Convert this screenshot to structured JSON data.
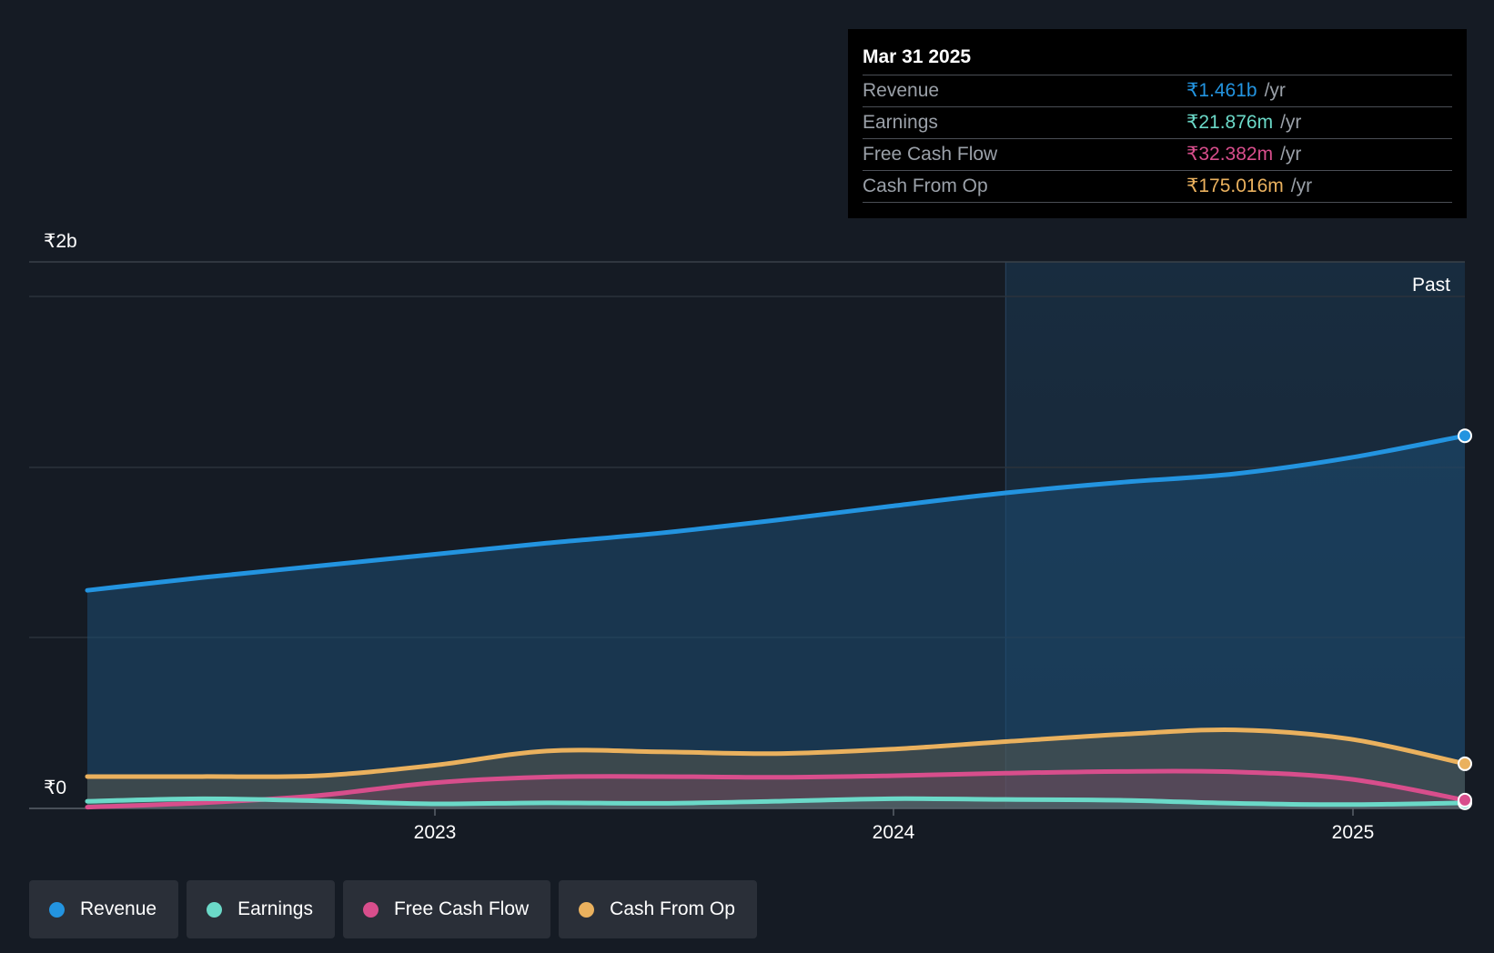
{
  "chart_data": {
    "type": "area",
    "y_unit_prefix": "₹",
    "ylim": [
      0,
      2000
    ],
    "y_unit": "m",
    "y_ticks": [
      {
        "value": 2000,
        "label": "₹2b"
      },
      {
        "value": 0,
        "label": "₹0"
      }
    ],
    "x_ticks": [
      {
        "value": 2023.0,
        "label": "2023"
      },
      {
        "value": 2024.0,
        "label": "2024"
      },
      {
        "value": 2025.0,
        "label": "2025"
      }
    ],
    "xlim": [
      2022.12,
      2025.25
    ],
    "past_start": 2024.25,
    "past_label": "Past",
    "series": [
      {
        "name": "Revenue",
        "color": "#2394e0",
        "points": [
          [
            2022.25,
            855
          ],
          [
            2022.5,
            905
          ],
          [
            2022.75,
            950
          ],
          [
            2023.0,
            995
          ],
          [
            2023.25,
            1040
          ],
          [
            2023.5,
            1080
          ],
          [
            2023.75,
            1130
          ],
          [
            2024.0,
            1185
          ],
          [
            2024.25,
            1237
          ],
          [
            2024.5,
            1278
          ],
          [
            2024.75,
            1312
          ],
          [
            2025.0,
            1375
          ],
          [
            2025.25,
            1461
          ]
        ]
      },
      {
        "name": "Earnings",
        "color": "#6bd9c8",
        "points": [
          [
            2022.25,
            28
          ],
          [
            2022.5,
            38
          ],
          [
            2022.75,
            30
          ],
          [
            2023.0,
            18
          ],
          [
            2023.25,
            22
          ],
          [
            2023.5,
            20
          ],
          [
            2023.75,
            28
          ],
          [
            2024.0,
            38
          ],
          [
            2024.25,
            35
          ],
          [
            2024.5,
            32
          ],
          [
            2024.75,
            20
          ],
          [
            2025.0,
            15
          ],
          [
            2025.25,
            21.876
          ]
        ]
      },
      {
        "name": "Free Cash Flow",
        "color": "#d84e8c",
        "points": [
          [
            2022.25,
            5
          ],
          [
            2022.5,
            22
          ],
          [
            2022.75,
            50
          ],
          [
            2023.0,
            100
          ],
          [
            2023.25,
            123
          ],
          [
            2023.5,
            125
          ],
          [
            2023.75,
            122
          ],
          [
            2024.0,
            128
          ],
          [
            2024.25,
            138
          ],
          [
            2024.5,
            145
          ],
          [
            2024.75,
            143
          ],
          [
            2025.0,
            115
          ],
          [
            2025.25,
            32.382
          ]
        ]
      },
      {
        "name": "Cash From Op",
        "color": "#eab15e",
        "points": [
          [
            2022.25,
            125
          ],
          [
            2022.5,
            125
          ],
          [
            2022.75,
            128
          ],
          [
            2023.0,
            168
          ],
          [
            2023.25,
            225
          ],
          [
            2023.5,
            222
          ],
          [
            2023.75,
            215
          ],
          [
            2024.0,
            232
          ],
          [
            2024.25,
            262
          ],
          [
            2024.5,
            290
          ],
          [
            2024.75,
            308
          ],
          [
            2025.0,
            272
          ],
          [
            2025.25,
            175.016
          ]
        ]
      }
    ]
  },
  "tooltip": {
    "date": "Mar 31 2025",
    "rows": [
      {
        "label": "Revenue",
        "value": "₹1.461b",
        "unit": "/yr",
        "color": "#2394e0"
      },
      {
        "label": "Earnings",
        "value": "₹21.876m",
        "unit": "/yr",
        "color": "#6bd9c8"
      },
      {
        "label": "Free Cash Flow",
        "value": "₹32.382m",
        "unit": "/yr",
        "color": "#d84e8c"
      },
      {
        "label": "Cash From Op",
        "value": "₹175.016m",
        "unit": "/yr",
        "color": "#eab15e"
      }
    ]
  },
  "legend": [
    {
      "label": "Revenue",
      "color": "#2394e0"
    },
    {
      "label": "Earnings",
      "color": "#6bd9c8"
    },
    {
      "label": "Free Cash Flow",
      "color": "#d84e8c"
    },
    {
      "label": "Cash From Op",
      "color": "#eab15e"
    }
  ]
}
